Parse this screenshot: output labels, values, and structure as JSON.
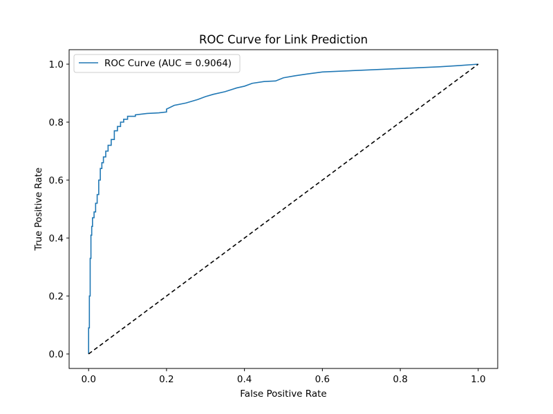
{
  "chart_data": {
    "type": "line",
    "title": "ROC Curve for Link Prediction",
    "xlabel": "False Positive Rate",
    "ylabel": "True Positive Rate",
    "xlim": [
      -0.05,
      1.05
    ],
    "ylim": [
      -0.05,
      1.05
    ],
    "x_ticks": [
      "0.0",
      "0.2",
      "0.4",
      "0.6",
      "0.8",
      "1.0"
    ],
    "y_ticks": [
      "0.0",
      "0.2",
      "0.4",
      "0.6",
      "0.8",
      "1.0"
    ],
    "grid": false,
    "legend_position": "upper-left",
    "series": [
      {
        "name": "ROC Curve (AUC = 0.9064)",
        "color": "#1f77b4",
        "style": "solid",
        "x": [
          0.0,
          0.0,
          0.002,
          0.002,
          0.004,
          0.004,
          0.006,
          0.006,
          0.008,
          0.008,
          0.01,
          0.01,
          0.014,
          0.014,
          0.018,
          0.018,
          0.022,
          0.022,
          0.026,
          0.026,
          0.03,
          0.03,
          0.034,
          0.034,
          0.038,
          0.038,
          0.044,
          0.044,
          0.05,
          0.05,
          0.058,
          0.058,
          0.066,
          0.066,
          0.074,
          0.074,
          0.082,
          0.082,
          0.09,
          0.09,
          0.1,
          0.1,
          0.12,
          0.12,
          0.15,
          0.18,
          0.2,
          0.2,
          0.22,
          0.25,
          0.28,
          0.3,
          0.32,
          0.35,
          0.38,
          0.4,
          0.42,
          0.45,
          0.48,
          0.5,
          0.53,
          0.56,
          0.6,
          0.65,
          0.7,
          0.75,
          0.8,
          0.85,
          0.9,
          0.95,
          1.0
        ],
        "y": [
          0.0,
          0.09,
          0.09,
          0.2,
          0.2,
          0.33,
          0.33,
          0.41,
          0.41,
          0.44,
          0.44,
          0.47,
          0.47,
          0.49,
          0.49,
          0.52,
          0.52,
          0.55,
          0.55,
          0.6,
          0.6,
          0.64,
          0.64,
          0.66,
          0.66,
          0.68,
          0.68,
          0.7,
          0.7,
          0.72,
          0.72,
          0.74,
          0.74,
          0.77,
          0.77,
          0.785,
          0.785,
          0.8,
          0.8,
          0.81,
          0.81,
          0.82,
          0.82,
          0.825,
          0.83,
          0.832,
          0.835,
          0.845,
          0.858,
          0.866,
          0.878,
          0.888,
          0.896,
          0.905,
          0.918,
          0.924,
          0.934,
          0.94,
          0.942,
          0.953,
          0.96,
          0.966,
          0.973,
          0.976,
          0.979,
          0.982,
          0.985,
          0.988,
          0.991,
          0.995,
          1.0
        ]
      },
      {
        "name": "",
        "color": "#000000",
        "style": "dashed",
        "x": [
          0.0,
          1.0
        ],
        "y": [
          0.0,
          1.0
        ]
      }
    ]
  }
}
